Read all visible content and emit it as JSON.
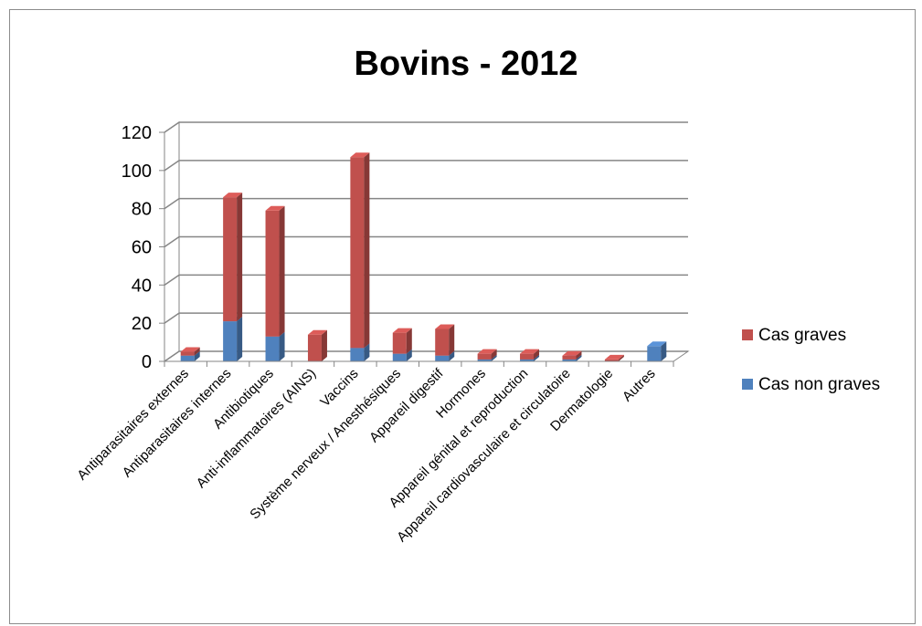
{
  "chart_data": {
    "type": "bar",
    "stacked": true,
    "style": "3d",
    "title": "Bovins - 2012",
    "xlabel": "",
    "ylabel": "",
    "ylim": [
      0,
      120
    ],
    "yticks": [
      0,
      20,
      40,
      60,
      80,
      100,
      120
    ],
    "grid": true,
    "legend_position": "right",
    "categories": [
      "Antiparasitaires externes",
      "Antiparasitaires internes",
      "Antibiotiques",
      "Anti-inflammatoires (AINS)",
      "Vaccins",
      "Système nerveux / Anesthésiques",
      "Appareil digestif",
      "Hormones",
      "Appareil génital et reproduction",
      "Appareil cardiovasculaire et circulatoire",
      "Dermatologie",
      "Autres"
    ],
    "series": [
      {
        "name": "Cas non graves",
        "color": "#4f81bd",
        "values": [
          3,
          21,
          13,
          0,
          7,
          4,
          3,
          1,
          1,
          1,
          0,
          8
        ]
      },
      {
        "name": "Cas graves",
        "color": "#c0504d",
        "values": [
          2,
          65,
          66,
          14,
          100,
          11,
          14,
          3,
          3,
          2,
          1,
          0
        ]
      }
    ],
    "legend_order": [
      "Cas graves",
      "Cas non graves"
    ]
  }
}
